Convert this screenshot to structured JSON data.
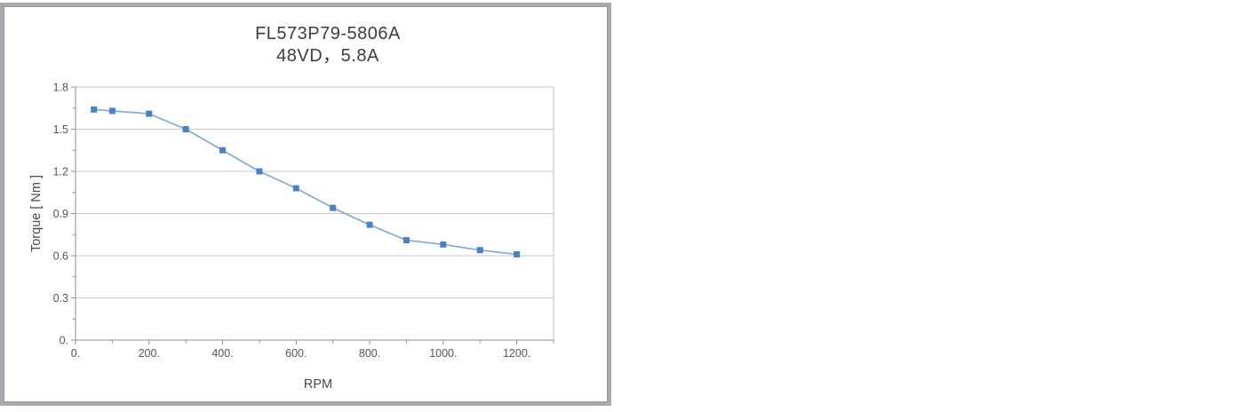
{
  "window": {
    "border_color": "#a9a9b0",
    "background": "#ffffff"
  },
  "chart_data": {
    "type": "line",
    "title": "FL573P79-5806A",
    "subtitle": "48VD，5.8A",
    "xlabel": "RPM",
    "ylabel": "Torque [ Nm ]",
    "x": [
      50,
      100,
      200,
      300,
      400,
      500,
      600,
      700,
      800,
      900,
      1000,
      1100,
      1200
    ],
    "y": [
      1.64,
      1.63,
      1.61,
      1.5,
      1.35,
      1.2,
      1.08,
      0.94,
      0.82,
      0.71,
      0.68,
      0.64,
      0.61
    ],
    "xlim": [
      0,
      1300
    ],
    "ylim": [
      0,
      1.8
    ],
    "x_major_ticks": [
      0,
      200,
      400,
      600,
      800,
      1000,
      1200
    ],
    "x_tick_labels": [
      "0.",
      "200.",
      "400.",
      "600.",
      "800.",
      "1000.",
      "1200."
    ],
    "x_minor_step": 100,
    "y_major_ticks": [
      0,
      0.3,
      0.6,
      0.9,
      1.2,
      1.5,
      1.8
    ],
    "y_tick_labels": [
      "0.",
      "0.3",
      "0.6",
      "0.9",
      "1.2",
      "1.5",
      "1.8"
    ],
    "y_minor_step": 0.15,
    "grid": "horizontal-major",
    "legend": "none",
    "marker": "square",
    "line_color": "#7fabd7",
    "marker_color": "#4a82c4",
    "axis_color": "#8f8f8f",
    "box_color": "#c2c2c2",
    "grid_color": "#c9c9c9",
    "tick_label_color": "#565656",
    "axis_title_color": "#4a4a4a",
    "title_color": "#3d3d3d"
  }
}
